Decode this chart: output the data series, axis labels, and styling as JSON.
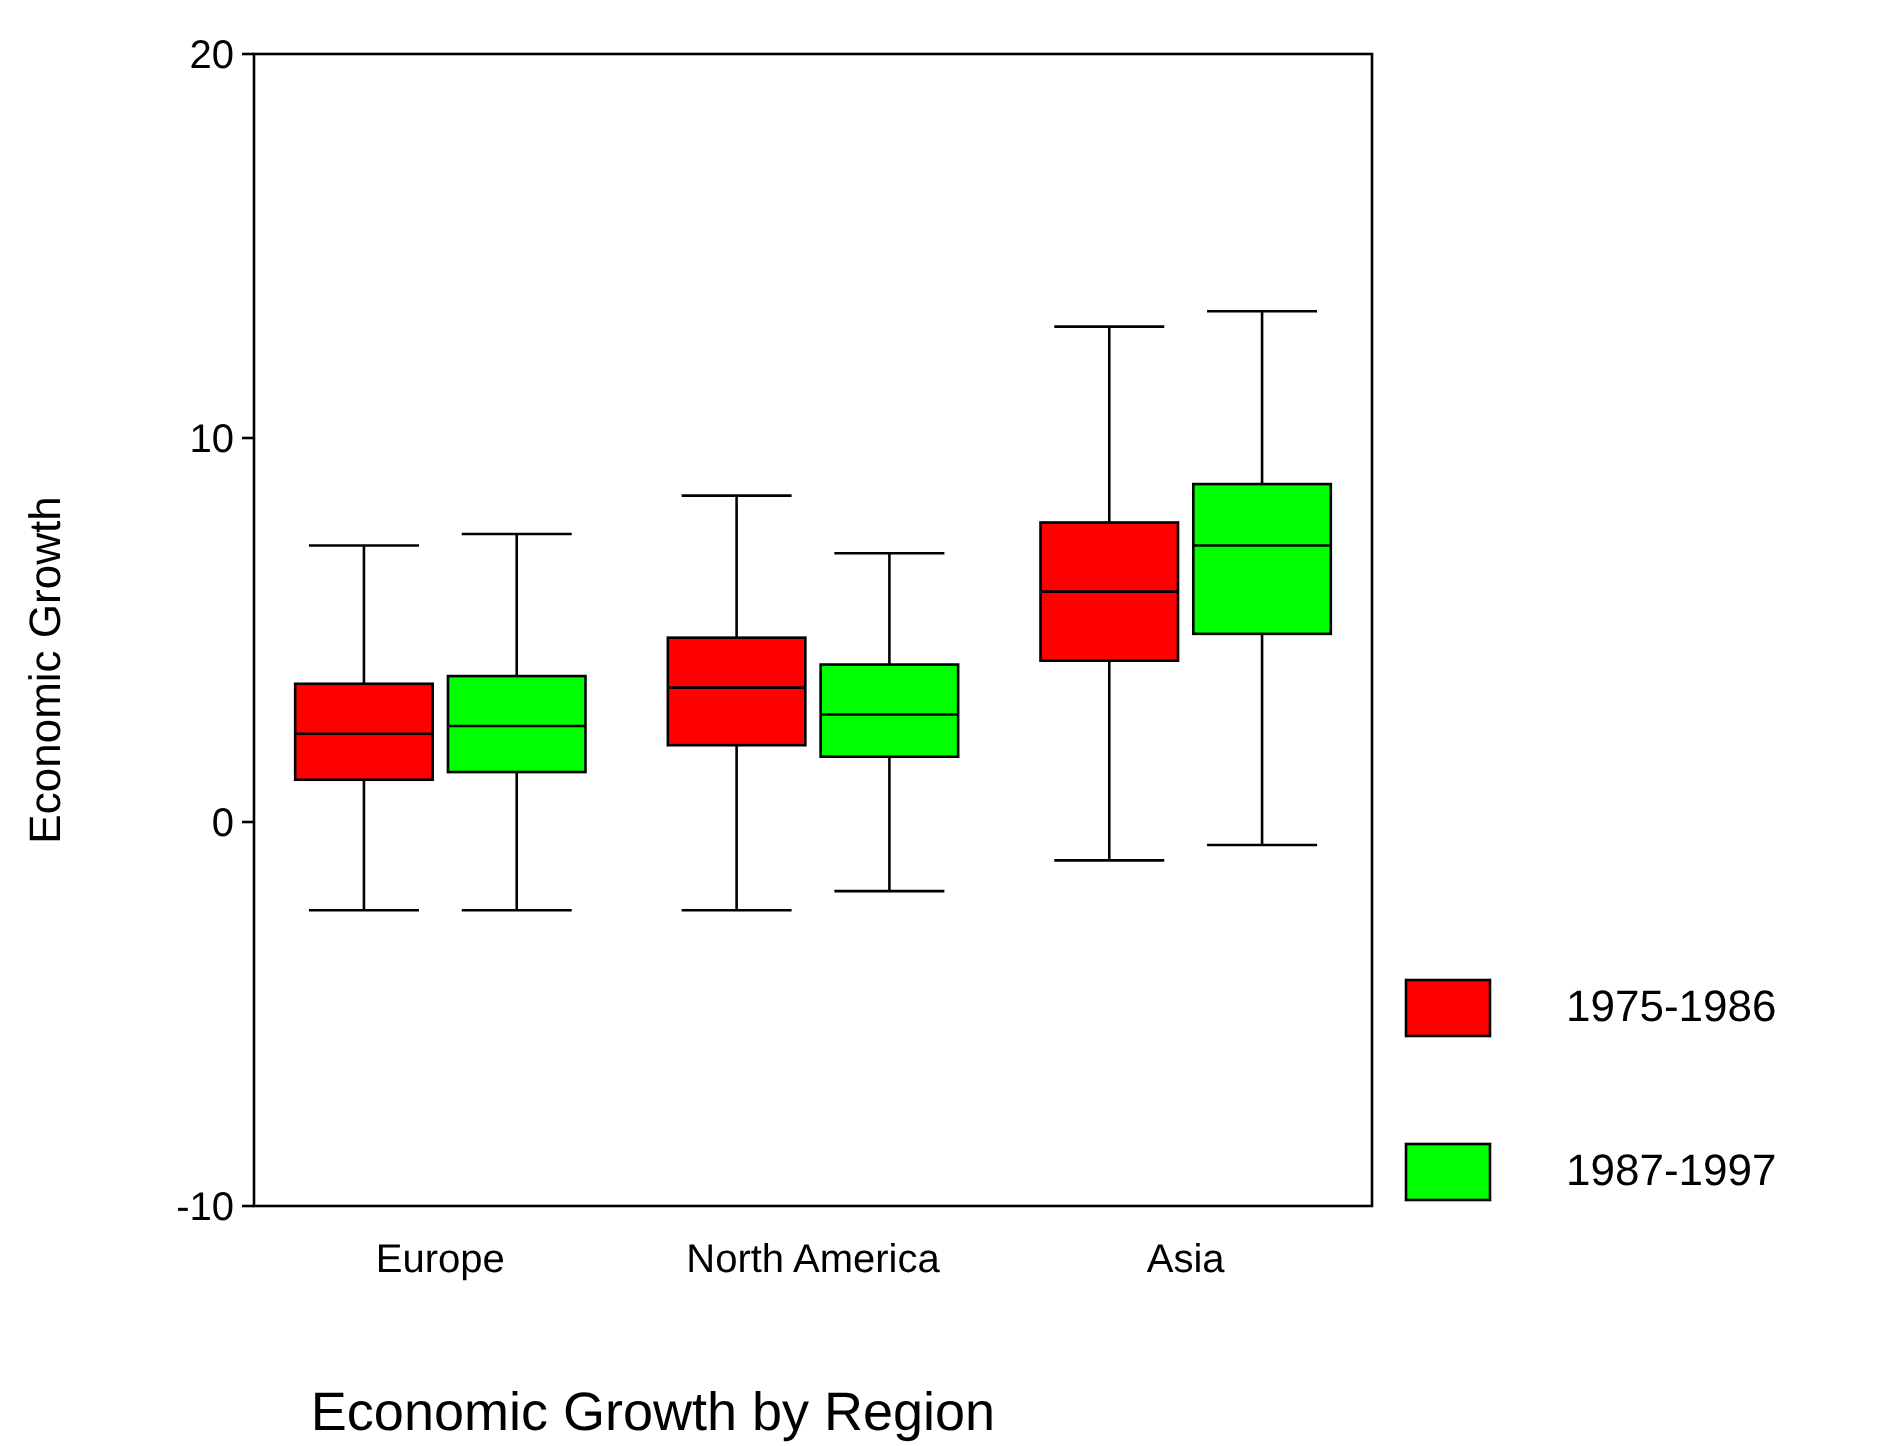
{
  "chart_data": {
    "type": "box",
    "xlabel": "Economic Growth by Region",
    "ylabel": "Economic Growth",
    "categories": [
      "Europe",
      "North America",
      "Asia"
    ],
    "ylim": [
      -10,
      20
    ],
    "yticks": [
      -10,
      0,
      10,
      20
    ],
    "grid": false,
    "legend": "bottom right",
    "series": [
      {
        "name": "1975-1986",
        "color": "#ff0000",
        "boxes": [
          {
            "low": -2.3,
            "q1": 1.1,
            "median": 2.3,
            "q3": 3.6,
            "high": 7.2
          },
          {
            "low": -2.3,
            "q1": 2.0,
            "median": 3.5,
            "q3": 4.8,
            "high": 8.5
          },
          {
            "low": -1.0,
            "q1": 4.2,
            "median": 6.0,
            "q3": 7.8,
            "high": 12.9
          }
        ]
      },
      {
        "name": "1987-1997",
        "color": "#00ff00",
        "boxes": [
          {
            "low": -2.3,
            "q1": 1.3,
            "median": 2.5,
            "q3": 3.8,
            "high": 7.5
          },
          {
            "low": -1.8,
            "q1": 1.7,
            "median": 2.8,
            "q3": 4.1,
            "high": 7.0
          },
          {
            "low": -0.6,
            "q1": 4.9,
            "median": 7.2,
            "q3": 8.8,
            "high": 13.3
          }
        ]
      }
    ]
  }
}
